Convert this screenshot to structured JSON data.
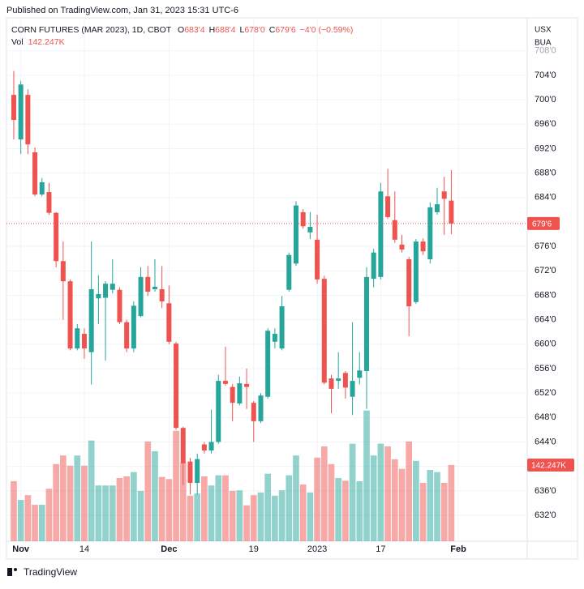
{
  "header": "Published on TradingView.com, Jan 31, 2023 15:31 UTC-6",
  "footer": "TradingView",
  "chart_data": {
    "type": "candlestick",
    "legend": {
      "title": "CORN FUTURES (MAR 2023), 1D, CBOT",
      "fields": [
        {
          "key": "O",
          "value": "683'4"
        },
        {
          "key": "H",
          "value": "688'4"
        },
        {
          "key": "L",
          "value": "678'0"
        },
        {
          "key": "C",
          "value": "679'6"
        }
      ],
      "change": "−4'0 (−0.59%)"
    },
    "currency": [
      "USX",
      "BUA"
    ],
    "up_color": "#26a69a",
    "down_color": "#ef5350",
    "open": [
      700.8,
      693.5,
      700.8,
      691.4,
      684.5,
      684.9,
      681.5,
      673.6,
      670.3,
      659.3,
      661.7,
      658.7,
      667.5,
      667.6,
      668.9,
      668.9,
      663.6,
      659.3,
      664.6,
      671,
      669,
      669,
      666.7,
      660.1,
      646.3,
      640.8,
      637.3,
      643.6,
      642.6,
      644,
      654,
      653,
      650.3,
      653.5,
      650.4,
      647.4,
      651.4,
      660.4,
      659.3,
      668.9,
      673.2,
      681.6,
      678.3,
      677.1,
      670.7,
      654.4,
      654,
      655.3,
      651.4,
      654.5,
      655.6,
      670.7,
      671,
      684.2,
      680.3,
      676.3,
      673.9,
      666.9,
      676.8,
      673.9,
      681.6,
      685,
      683.5
    ],
    "high": [
      704.7,
      703.1,
      701.7,
      692.2,
      687.2,
      686.4,
      681.6,
      676.8,
      670.6,
      663.3,
      662.6,
      676.8,
      671.3,
      670.3,
      673.9,
      669.3,
      664,
      667,
      672.6,
      672.8,
      673.9,
      672.8,
      669.6,
      660.4,
      646.5,
      641.4,
      642.1,
      644,
      649.3,
      655,
      659.6,
      653.5,
      654.7,
      656,
      650.7,
      652,
      662.6,
      662.6,
      667.9,
      675,
      683.4,
      682.1,
      681.6,
      681.2,
      671.2,
      655,
      658.7,
      655.6,
      663.6,
      658.7,
      672.6,
      675.6,
      686.4,
      688.7,
      685,
      677.9,
      674.3,
      677.2,
      677.3,
      683.2,
      685.6,
      687.4,
      688.5
    ],
    "low": [
      693.5,
      691.1,
      691.1,
      684.2,
      684.2,
      681.2,
      672.6,
      664,
      659,
      659,
      657.6,
      653.4,
      663.3,
      657.3,
      668.3,
      663.3,
      658.7,
      658.7,
      664.4,
      667.9,
      668.6,
      665.9,
      660,
      646,
      637,
      635.4,
      635.4,
      642.1,
      642.1,
      643.7,
      653.2,
      647.4,
      650,
      649.4,
      644,
      647.1,
      651.1,
      659.3,
      659,
      668.6,
      672.8,
      678.9,
      677.2,
      669.9,
      653.4,
      648.7,
      652.7,
      651.1,
      648.4,
      653.4,
      649.4,
      669.3,
      670.6,
      680.5,
      676.6,
      675,
      661.3,
      666.6,
      674.6,
      673.2,
      681.2,
      677.9,
      678
    ],
    "close": [
      696.7,
      702.5,
      692.7,
      684.5,
      686.5,
      681.5,
      673.6,
      670.3,
      659.3,
      662.6,
      659.3,
      669,
      668.2,
      669.9,
      669.9,
      663.6,
      659.3,
      666.3,
      671,
      668.6,
      669.4,
      667,
      660.4,
      646.3,
      640.5,
      637.3,
      641.2,
      642.6,
      644,
      654,
      653.5,
      650.4,
      653.6,
      653,
      647.4,
      651.6,
      662.2,
      661.7,
      666.2,
      674.6,
      682.7,
      679.3,
      679.2,
      670.6,
      653.7,
      652.7,
      654.4,
      652.9,
      654,
      655.7,
      671,
      675,
      685,
      680.8,
      677.1,
      675.5,
      666.2,
      676.8,
      675.2,
      682.4,
      682.9,
      683.8,
      679.75
    ],
    "volume": {
      "name": "Vol",
      "last_label": "142.247K",
      "ylim": [
        0,
        977
      ],
      "values": [
        112,
        77,
        86,
        68,
        68,
        98,
        144,
        160,
        141,
        160,
        141,
        188,
        104,
        104,
        104,
        118,
        121,
        129,
        94,
        186,
        168,
        120,
        116,
        206,
        147,
        85,
        89,
        121,
        104,
        123,
        123,
        94,
        95,
        67,
        86,
        91,
        126,
        85,
        95,
        123,
        160,
        106,
        91,
        156,
        177,
        144,
        118,
        113,
        182,
        112,
        244,
        160,
        182,
        177,
        153,
        135,
        186,
        150,
        109,
        133,
        129,
        109,
        142.247
      ]
    },
    "last_price": {
      "value": 679.75,
      "label": "679'6"
    },
    "xlim": [
      -1.03,
      72.76
    ],
    "xticks": [
      {
        "value": 1,
        "label": "Nov"
      },
      {
        "value": 10,
        "label": "14"
      },
      {
        "value": 22,
        "label": "Dec"
      },
      {
        "value": 34,
        "label": "19"
      },
      {
        "value": 43,
        "label": "2023"
      },
      {
        "value": 52,
        "label": "17"
      },
      {
        "value": 63,
        "label": "Feb"
      }
    ],
    "ylim": [
      627.76,
      713.41
    ],
    "yticks": [
      {
        "value": 632,
        "label": "632'0"
      },
      {
        "value": 636,
        "label": "636'0"
      },
      {
        "value": 640,
        "label": "640'0"
      },
      {
        "value": 644,
        "label": "644'0"
      },
      {
        "value": 648,
        "label": "648'0"
      },
      {
        "value": 652,
        "label": "652'0"
      },
      {
        "value": 656,
        "label": "656'0"
      },
      {
        "value": 660,
        "label": "660'0"
      },
      {
        "value": 664,
        "label": "664'0"
      },
      {
        "value": 668,
        "label": "668'0"
      },
      {
        "value": 672,
        "label": "672'0"
      },
      {
        "value": 676,
        "label": "676'0"
      },
      {
        "value": 680,
        "label": "680'0"
      },
      {
        "value": 684,
        "label": "684'0"
      },
      {
        "value": 688,
        "label": "688'0"
      },
      {
        "value": 692,
        "label": "692'0"
      },
      {
        "value": 696,
        "label": "696'0"
      },
      {
        "value": 700,
        "label": "700'0"
      },
      {
        "value": 704,
        "label": "704'0"
      },
      {
        "value": 708,
        "label": "708'0"
      }
    ],
    "grid": true
  }
}
